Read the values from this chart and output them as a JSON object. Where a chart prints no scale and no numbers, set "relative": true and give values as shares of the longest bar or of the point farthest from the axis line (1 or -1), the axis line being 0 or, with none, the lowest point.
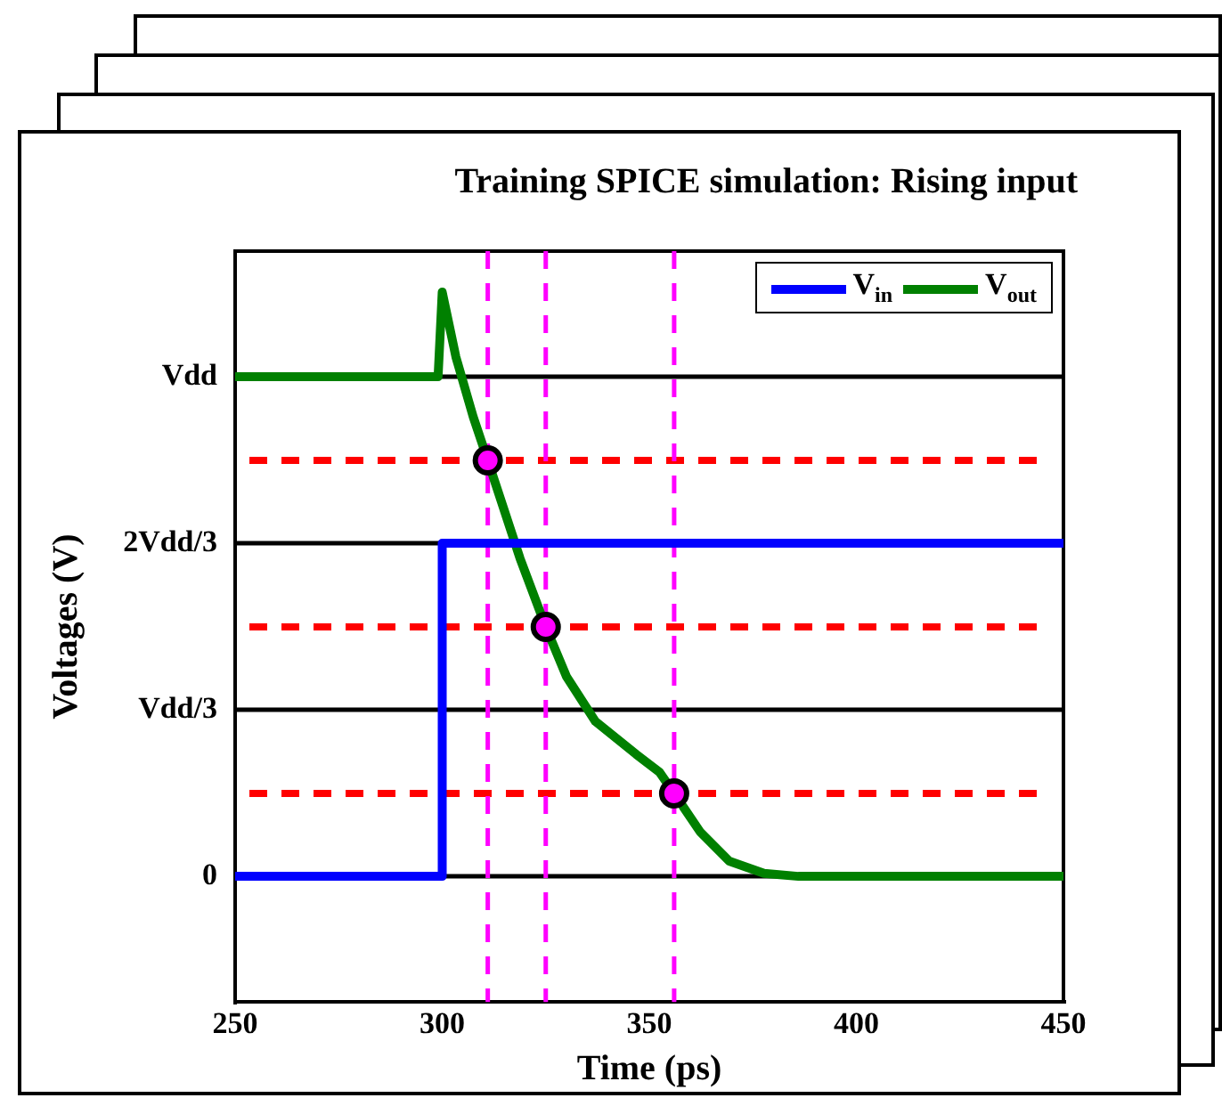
{
  "chart_data": {
    "type": "line",
    "relative": true,
    "title": "Training SPICE simulation: Rising input",
    "xlabel": "Time (ps)",
    "ylabel": "Voltages (V)",
    "xlim": [
      250,
      450
    ],
    "xticks": [
      250,
      300,
      350,
      400,
      450
    ],
    "legend": "top right",
    "marker": "none",
    "line_style": "solid",
    "series": [
      {
        "name": "V$_{in}$",
        "color": "#0000ff",
        "x": [
          250,
          300,
          300,
          450
        ],
        "values": [
          0,
          0,
          0.57,
          0.57
        ]
      },
      {
        "name": "V$_{out}$",
        "color": "#008000",
        "x": [
          250,
          299,
          300,
          303.3,
          307.5,
          311,
          318.8,
          325,
          330,
          337,
          346.8,
          352.5,
          356,
          362.3,
          369.3,
          377.7,
          386,
          450
        ],
        "values": [
          0.855,
          0.855,
          1,
          0.889,
          0.786,
          0.712,
          0.544,
          0.427,
          0.342,
          0.265,
          0.209,
          0.178,
          0.142,
          0.076,
          0.026,
          0.005,
          0,
          0
        ]
      },
      {
        "type": "scatter",
        "color": "#ff00ff",
        "marker": "circle",
        "x": [
          311,
          325,
          356
        ],
        "values": [
          0.712,
          0.427,
          0.142
        ]
      }
    ],
    "ref_lines": [
      {
        "axis": "y",
        "value": 0,
        "label": "0",
        "color": "#000000",
        "line_style": "solid"
      },
      {
        "axis": "y",
        "value": 0.285,
        "label": "Vdd/3",
        "color": "#000000",
        "line_style": "solid"
      },
      {
        "axis": "y",
        "value": 0.57,
        "label": "2Vdd/3",
        "color": "#000000",
        "line_style": "solid"
      },
      {
        "axis": "y",
        "value": 0.855,
        "label": "Vdd",
        "color": "#000000",
        "line_style": "solid"
      },
      {
        "axis": "y",
        "value": 0.142,
        "color": "#ff0000",
        "line_style": "dashed"
      },
      {
        "axis": "y",
        "value": 0.427,
        "color": "#ff0000",
        "line_style": "dashed"
      },
      {
        "axis": "y",
        "value": 0.712,
        "color": "#ff0000",
        "line_style": "dashed"
      },
      {
        "axis": "x",
        "value": 311,
        "color": "#ff00ff",
        "line_style": "dashed"
      },
      {
        "axis": "x",
        "value": 325,
        "color": "#ff00ff",
        "line_style": "dashed"
      },
      {
        "axis": "x",
        "value": 356,
        "color": "#ff00ff",
        "line_style": "dashed"
      }
    ]
  }
}
